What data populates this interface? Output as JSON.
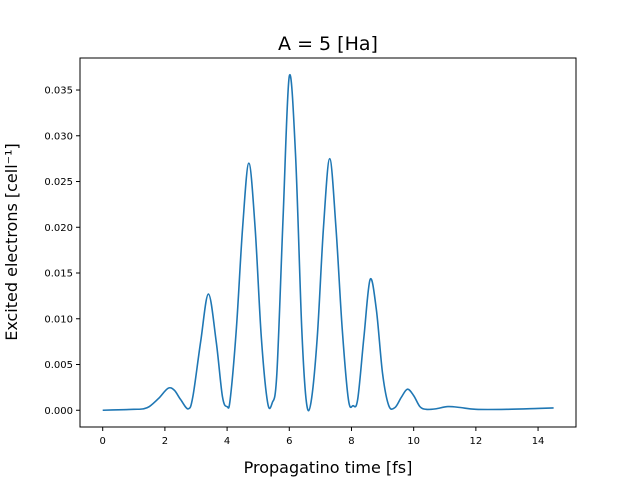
{
  "chart_data": {
    "type": "line",
    "title": "A = 5 [Ha]",
    "xlabel": "Propagatino time [fs]",
    "ylabel": "Excited electrons  [cell⁻¹]",
    "xlim": [
      -0.73,
      15.22
    ],
    "ylim": [
      -0.00183,
      0.0385
    ],
    "xticks": [
      0,
      2,
      4,
      6,
      8,
      10,
      12,
      14
    ],
    "yticks": [
      0.0,
      0.005,
      0.01,
      0.015,
      0.02,
      0.025,
      0.03,
      0.035
    ],
    "ytick_labels": [
      "0.000",
      "0.005",
      "0.010",
      "0.015",
      "0.020",
      "0.025",
      "0.030",
      "0.035"
    ],
    "xtick_labels": [
      "0",
      "2",
      "4",
      "6",
      "8",
      "10",
      "12",
      "14"
    ],
    "line_color": "#1f77b4",
    "grid": false,
    "series": [
      {
        "x": [
          0.0,
          0.5,
          1.0,
          1.3,
          1.5,
          1.8,
          2.1,
          2.3,
          2.5,
          2.75,
          2.9,
          3.15,
          3.4,
          3.65,
          3.85,
          4.0,
          4.1,
          4.3,
          4.5,
          4.7,
          4.9,
          5.1,
          5.3,
          5.45,
          5.6,
          5.8,
          6.0,
          6.2,
          6.4,
          6.55,
          6.7,
          6.9,
          7.1,
          7.3,
          7.5,
          7.7,
          7.9,
          8.05,
          8.2,
          8.4,
          8.6,
          8.8,
          9.0,
          9.2,
          9.4,
          9.6,
          9.8,
          10.0,
          10.2,
          10.4,
          10.7,
          11.1,
          11.5,
          12.0,
          13.0,
          14.0,
          14.5
        ],
        "y": [
          0.0,
          5e-05,
          0.0001,
          0.00015,
          0.0004,
          0.0013,
          0.0024,
          0.0022,
          0.0012,
          0.00015,
          0.0015,
          0.0075,
          0.0127,
          0.0075,
          0.0015,
          0.0004,
          0.0012,
          0.009,
          0.02,
          0.027,
          0.02,
          0.008,
          0.0009,
          0.0008,
          0.004,
          0.021,
          0.0365,
          0.028,
          0.009,
          0.0009,
          0.0009,
          0.008,
          0.02,
          0.0275,
          0.02,
          0.009,
          0.0012,
          0.0005,
          0.0012,
          0.008,
          0.0143,
          0.011,
          0.004,
          0.0005,
          0.0003,
          0.0014,
          0.0023,
          0.0016,
          0.0004,
          0.0001,
          0.00015,
          0.0004,
          0.0003,
          0.0001,
          0.0001,
          0.0002,
          0.00025
        ]
      }
    ]
  }
}
